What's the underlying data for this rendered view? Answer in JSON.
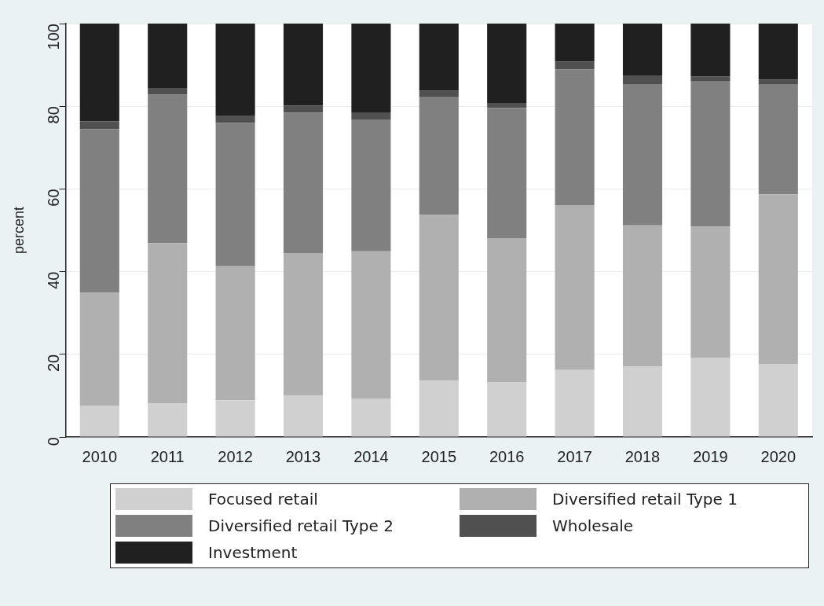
{
  "chart_data": {
    "type": "bar",
    "stacked": true,
    "ylabel": "percent",
    "categories": [
      "2010",
      "2011",
      "2012",
      "2013",
      "2014",
      "2015",
      "2016",
      "2017",
      "2018",
      "2019",
      "2020"
    ],
    "ylim": [
      0,
      100
    ],
    "yticks": [
      0,
      20,
      40,
      60,
      80,
      100
    ],
    "grid": "y",
    "legend": "bottom",
    "series": [
      {
        "name": "Focused retail",
        "color": "#d0d0d0",
        "values": [
          7.6,
          8.1,
          8.9,
          10.0,
          9.3,
          13.6,
          13.3,
          16.2,
          17.0,
          19.2,
          17.6
        ]
      },
      {
        "name": "Diversified retail Type 1",
        "color": "#b0b0b0",
        "values": [
          27.3,
          38.8,
          32.4,
          34.5,
          35.6,
          40.1,
          34.8,
          39.9,
          34.2,
          31.7,
          41.1
        ]
      },
      {
        "name": "Diversified retail Type 2",
        "color": "#808080",
        "values": [
          39.6,
          35.9,
          34.7,
          33.9,
          31.9,
          28.5,
          31.5,
          32.8,
          34.0,
          35.1,
          26.5
        ]
      },
      {
        "name": "Wholesale",
        "color": "#505050",
        "values": [
          1.9,
          1.6,
          1.6,
          1.8,
          1.7,
          1.6,
          1.2,
          1.9,
          2.1,
          1.2,
          1.2
        ]
      },
      {
        "name": "Investment",
        "color": "#202020",
        "values": [
          23.6,
          15.6,
          22.4,
          19.8,
          21.5,
          16.2,
          19.2,
          9.2,
          12.7,
          12.8,
          13.6
        ]
      }
    ]
  }
}
